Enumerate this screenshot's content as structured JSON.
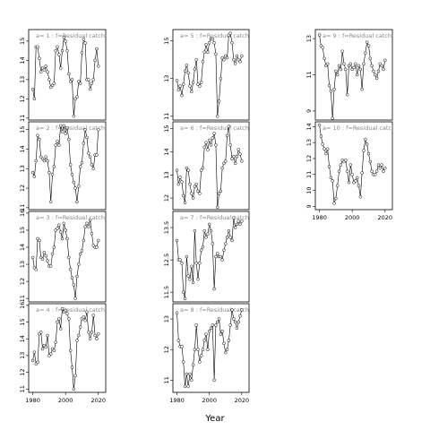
{
  "chart_data": {
    "type": "line",
    "xlabel": "Year",
    "ylabel": "",
    "x_tick_labels": [
      "1980",
      "2000",
      "2020"
    ],
    "panels": [
      {
        "label": "a= 1 :  f=Residual catch",
        "y_ticks": [
          11,
          12,
          13,
          14,
          15
        ],
        "ylim": [
          10.9,
          15.6
        ],
        "x": [
          1980,
          1981,
          1982,
          1983,
          1984,
          1985,
          1986,
          1987,
          1988,
          1989,
          1990,
          1991,
          1992,
          1993,
          1994,
          1995,
          1996,
          1997,
          1998,
          1999,
          2000,
          2001,
          2002,
          2003,
          2004,
          2005,
          2006,
          2007,
          2008,
          2009,
          2010,
          2011,
          2012,
          2013,
          2014,
          2015,
          2016,
          2017,
          2018,
          2019,
          2020
        ],
        "values": [
          12.5,
          12.0,
          14.7,
          14.7,
          14.1,
          13.4,
          13.6,
          13.5,
          13.7,
          13.4,
          13.0,
          12.6,
          12.7,
          12.8,
          14.5,
          14.7,
          14.3,
          13.6,
          14.5,
          15.2,
          15.0,
          14.5,
          13.3,
          12.9,
          13.0,
          11.1,
          12.0,
          12.1,
          12.9,
          12.8,
          14.4,
          15.1,
          14.9,
          13.0,
          13.0,
          12.5,
          12.8,
          13.0,
          14.0,
          14.6,
          13.7
        ]
      },
      {
        "label": "a= 2 :  f=Residual catch",
        "y_ticks": [
          11,
          12,
          13,
          14,
          15
        ],
        "ylim": [
          10.9,
          15.4
        ],
        "x": [
          1980,
          1981,
          1982,
          1983,
          1984,
          1985,
          1986,
          1987,
          1988,
          1989,
          1990,
          1991,
          1992,
          1993,
          1994,
          1995,
          1996,
          1997,
          1998,
          1999,
          2000,
          2001,
          2002,
          2003,
          2004,
          2005,
          2006,
          2007,
          2008,
          2009,
          2010,
          2011,
          2012,
          2013,
          2014,
          2015,
          2016,
          2017,
          2018,
          2019,
          2020
        ],
        "values": [
          12.8,
          12.6,
          13.4,
          14.7,
          14.5,
          13.6,
          13.5,
          13.4,
          13.6,
          13.4,
          12.8,
          11.3,
          12.7,
          13.1,
          14.2,
          14.4,
          14.2,
          15.2,
          14.9,
          15.2,
          14.8,
          15.1,
          14.5,
          13.2,
          12.7,
          12.3,
          12.0,
          11.3,
          12.1,
          13.1,
          13.3,
          14.3,
          15.0,
          14.6,
          13.8,
          13.6,
          13.2,
          13.0,
          13.7,
          13.7,
          15.0
        ]
      },
      {
        "label": "a= 3 :  f=Residual catch",
        "y_ticks": [
          11,
          12,
          13,
          14,
          15,
          16
        ],
        "ylim": [
          10.8,
          16.1
        ],
        "x": [
          1980,
          1981,
          1982,
          1983,
          1984,
          1985,
          1986,
          1987,
          1988,
          1989,
          1990,
          1991,
          1992,
          1993,
          1994,
          1995,
          1996,
          1997,
          1998,
          1999,
          2000,
          2001,
          2002,
          2003,
          2004,
          2005,
          2006,
          2007,
          2008,
          2009,
          2010,
          2011,
          2012,
          2013,
          2014,
          2015,
          2016,
          2017,
          2018,
          2019,
          2020
        ],
        "values": [
          13.4,
          12.8,
          12.7,
          14.5,
          14.4,
          13.4,
          13.3,
          13.7,
          13.5,
          13.2,
          12.9,
          12.9,
          13.6,
          14.0,
          15.0,
          15.1,
          15.3,
          14.9,
          14.5,
          15.4,
          15.0,
          14.5,
          13.4,
          12.7,
          12.2,
          11.8,
          11.0,
          12.3,
          13.0,
          13.6,
          13.8,
          14.4,
          15.2,
          15.4,
          15.2,
          15.6,
          14.8,
          14.1,
          14.0,
          14.0,
          14.4
        ]
      },
      {
        "label": "a= 4 :  f=Residual catch",
        "y_ticks": [
          11,
          12,
          13,
          14,
          15,
          16
        ],
        "ylim": [
          10.8,
          16.1
        ],
        "x": [
          1980,
          1981,
          1982,
          1983,
          1984,
          1985,
          1986,
          1987,
          1988,
          1989,
          1990,
          1991,
          1992,
          1993,
          1994,
          1995,
          1996,
          1997,
          1998,
          1999,
          2000,
          2001,
          2002,
          2003,
          2004,
          2005,
          2006,
          2007,
          2008,
          2009,
          2010,
          2011,
          2012,
          2013,
          2014,
          2015,
          2016,
          2017,
          2018,
          2019,
          2020
        ],
        "values": [
          12.7,
          13.2,
          12.5,
          12.6,
          14.3,
          14.4,
          13.4,
          13.6,
          13.5,
          14.2,
          13.0,
          13.1,
          13.4,
          13.3,
          13.8,
          15.0,
          15.2,
          14.6,
          15.8,
          15.6,
          15.7,
          15.5,
          15.2,
          13.3,
          12.3,
          11.0,
          11.8,
          13.9,
          14.2,
          14.7,
          15.2,
          15.3,
          15.1,
          15.6,
          14.4,
          14.0,
          14.4,
          15.4,
          14.2,
          14.0,
          14.3
        ]
      },
      {
        "label": "a= 5 :  f=Residual catch",
        "y_ticks": [
          11,
          13,
          15
        ],
        "ylim": [
          10.8,
          15.6
        ],
        "x": [
          1980,
          1981,
          1982,
          1983,
          1984,
          1985,
          1986,
          1987,
          1988,
          1989,
          1990,
          1991,
          1992,
          1993,
          1994,
          1995,
          1996,
          1997,
          1998,
          1999,
          2000,
          2001,
          2002,
          2003,
          2004,
          2005,
          2006,
          2007,
          2008,
          2009,
          2010,
          2011,
          2012,
          2013,
          2014,
          2015,
          2016,
          2017,
          2018,
          2019,
          2020
        ],
        "values": [
          12.9,
          12.4,
          12.6,
          12.1,
          12.7,
          13.4,
          13.7,
          13.3,
          12.6,
          12.3,
          12.8,
          13.5,
          14.0,
          12.7,
          12.6,
          12.8,
          13.9,
          14.4,
          14.8,
          14.4,
          14.9,
          15.1,
          15.1,
          14.9,
          14.3,
          11.0,
          11.8,
          13.0,
          14.1,
          14.0,
          14.2,
          14.1,
          15.3,
          15.4,
          14.9,
          14.0,
          13.8,
          14.2,
          14.0,
          13.9,
          14.2
        ]
      },
      {
        "label": "a= 6 :  f=Residual catch",
        "y_ticks": [
          12.0,
          13.0,
          14.0,
          15.0
        ],
        "ylim": [
          11.5,
          15.3
        ],
        "x": [
          1980,
          1981,
          1982,
          1983,
          1984,
          1985,
          1986,
          1987,
          1988,
          1989,
          1990,
          1991,
          1992,
          1993,
          1994,
          1995,
          1996,
          1997,
          1998,
          1999,
          2000,
          2001,
          2002,
          2003,
          2004,
          2005,
          2006,
          2007,
          2008,
          2009,
          2010,
          2011,
          2012,
          2013,
          2014,
          2015,
          2016,
          2017,
          2018,
          2019,
          2020
        ],
        "values": [
          13.2,
          12.6,
          12.9,
          12.7,
          12.1,
          11.8,
          13.3,
          13.2,
          12.6,
          12.2,
          12.0,
          12.5,
          12.6,
          12.3,
          12.2,
          13.2,
          13.3,
          14.2,
          14.4,
          14.1,
          14.5,
          14.3,
          14.6,
          14.8,
          14.3,
          11.6,
          12.2,
          12.3,
          13.3,
          13.5,
          13.6,
          14.7,
          15.1,
          14.3,
          13.7,
          13.8,
          13.5,
          13.8,
          14.1,
          13.9,
          13.6
        ]
      },
      {
        "label": "a= 7 :  f=Residual catch",
        "y_ticks": [
          11.5,
          12.5,
          13.5
        ],
        "ylim": [
          11.2,
          14.0
        ],
        "x": [
          1980,
          1981,
          1982,
          1983,
          1984,
          1985,
          1986,
          1987,
          1988,
          1989,
          1990,
          1991,
          1992,
          1993,
          1994,
          1995,
          1996,
          1997,
          1998,
          1999,
          2000,
          2001,
          2002,
          2003,
          2004,
          2005,
          2006,
          2007,
          2008,
          2009,
          2010,
          2011,
          2012,
          2013,
          2014,
          2015,
          2016,
          2017,
          2018,
          2019,
          2020
        ],
        "values": [
          13.1,
          12.5,
          12.5,
          12.4,
          11.5,
          11.3,
          12.6,
          12.0,
          11.9,
          12.3,
          11.8,
          13.4,
          12.4,
          11.9,
          12.4,
          12.8,
          12.9,
          13.4,
          13.2,
          13.3,
          13.6,
          13.4,
          13.0,
          11.6,
          12.6,
          12.7,
          12.6,
          12.6,
          12.5,
          12.8,
          13.0,
          13.2,
          13.4,
          13.2,
          13.1,
          13.8,
          13.5,
          13.6,
          13.7,
          13.6,
          13.7
        ]
      },
      {
        "label": "a= 8 :  f=Residual catch",
        "y_ticks": [
          11.0,
          12.0,
          13.0
        ],
        "ylim": [
          10.6,
          13.5
        ],
        "x": [
          1980,
          1981,
          1982,
          1983,
          1984,
          1985,
          1986,
          1987,
          1988,
          1989,
          1990,
          1991,
          1992,
          1993,
          1994,
          1995,
          1996,
          1997,
          1998,
          1999,
          2000,
          2001,
          2002,
          2003,
          2004,
          2005,
          2006,
          2007,
          2008,
          2009,
          2010,
          2011,
          2012,
          2013,
          2014,
          2015,
          2016,
          2017,
          2018,
          2019,
          2020
        ],
        "values": [
          13.2,
          12.3,
          12.1,
          12.1,
          11.6,
          10.8,
          11.2,
          10.8,
          11.2,
          11.0,
          11.5,
          12.0,
          12.8,
          12.0,
          11.6,
          11.8,
          12.0,
          12.3,
          12.5,
          12.0,
          12.6,
          12.7,
          12.8,
          11.0,
          12.8,
          12.9,
          13.0,
          12.5,
          12.6,
          12.2,
          11.9,
          12.0,
          12.3,
          12.8,
          13.3,
          13.0,
          12.9,
          12.7,
          12.9,
          13.1,
          13.3
        ]
      },
      {
        "label": "a= 9 :  f=Residual catch",
        "y_ticks": [
          9,
          11,
          13
        ],
        "ylim": [
          8.5,
          13.5
        ],
        "x": [
          1980,
          1981,
          1982,
          1983,
          1984,
          1985,
          1986,
          1987,
          1988,
          1989,
          1990,
          1991,
          1992,
          1993,
          1994,
          1995,
          1996,
          1997,
          1998,
          1999,
          2000,
          2001,
          2002,
          2003,
          2004,
          2005,
          2006,
          2007,
          2008,
          2009,
          2010,
          2011,
          2012,
          2013,
          2014,
          2015,
          2016,
          2017,
          2018,
          2019,
          2020
        ],
        "values": [
          13.2,
          12.6,
          12.5,
          11.9,
          11.5,
          11.6,
          10.4,
          10.1,
          8.6,
          10.2,
          11.2,
          11.0,
          11.5,
          11.3,
          12.3,
          11.6,
          11.3,
          9.9,
          11.5,
          11.6,
          11.3,
          11.4,
          11.6,
          11.0,
          11.5,
          11.3,
          10.2,
          11.6,
          12.2,
          12.8,
          12.6,
          11.9,
          11.5,
          11.2,
          11.0,
          10.8,
          11.2,
          11.6,
          11.5,
          11.3,
          11.8
        ]
      },
      {
        "label": "a= 10 :  f=Residual catch",
        "y_ticks": [
          9,
          10,
          11,
          12,
          13,
          14
        ],
        "ylim": [
          8.8,
          14.3
        ],
        "x": [
          1980,
          1981,
          1982,
          1983,
          1984,
          1985,
          1986,
          1987,
          1988,
          1989,
          1990,
          1991,
          1992,
          1993,
          1994,
          1995,
          1996,
          1997,
          1998,
          1999,
          2000,
          2001,
          2002,
          2003,
          2004,
          2005,
          2006,
          2007,
          2008,
          2009,
          2010,
          2011,
          2012,
          2013,
          2014,
          2015,
          2016,
          2017,
          2018,
          2019,
          2020
        ],
        "values": [
          14.1,
          13.4,
          12.9,
          12.6,
          12.3,
          12.6,
          11.5,
          10.8,
          10.6,
          9.2,
          9.5,
          10.3,
          11.2,
          11.6,
          11.9,
          11.8,
          11.9,
          11.2,
          10.5,
          11.6,
          11.0,
          10.5,
          10.6,
          10.8,
          10.3,
          9.6,
          11.1,
          12.5,
          13.2,
          12.9,
          12.3,
          11.8,
          11.2,
          11.0,
          11.0,
          11.2,
          11.6,
          11.4,
          11.6,
          11.2,
          11.4
        ]
      }
    ]
  }
}
